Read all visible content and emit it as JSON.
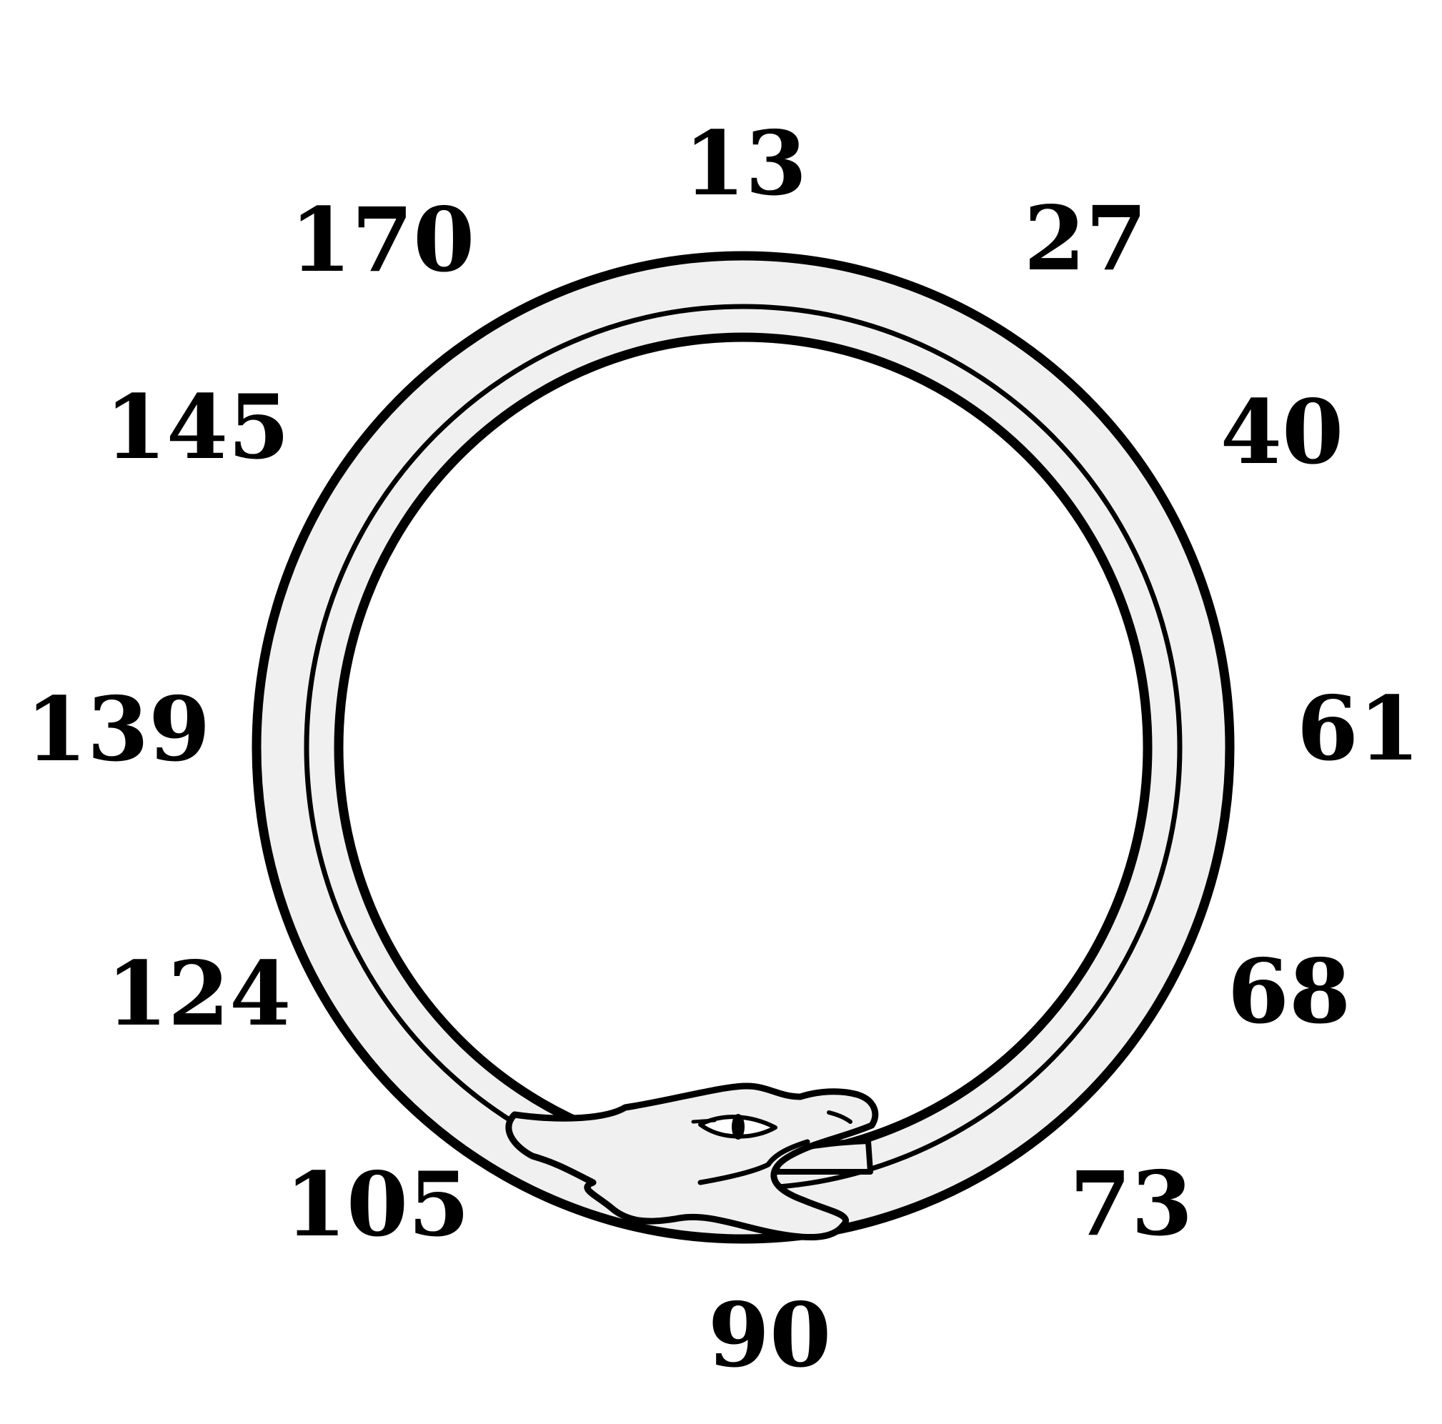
{
  "diagram": {
    "subject": "ouroboros",
    "numbers": [
      {
        "label": "13"
      },
      {
        "label": "27"
      },
      {
        "label": "40"
      },
      {
        "label": "61"
      },
      {
        "label": "68"
      },
      {
        "label": "73"
      },
      {
        "label": "90"
      },
      {
        "label": "105"
      },
      {
        "label": "124"
      },
      {
        "label": "139"
      },
      {
        "label": "145"
      },
      {
        "label": "170"
      }
    ],
    "colors": {
      "outline": "#000000",
      "body_fill": "#f0f0f0",
      "background": "#ffffff"
    }
  }
}
